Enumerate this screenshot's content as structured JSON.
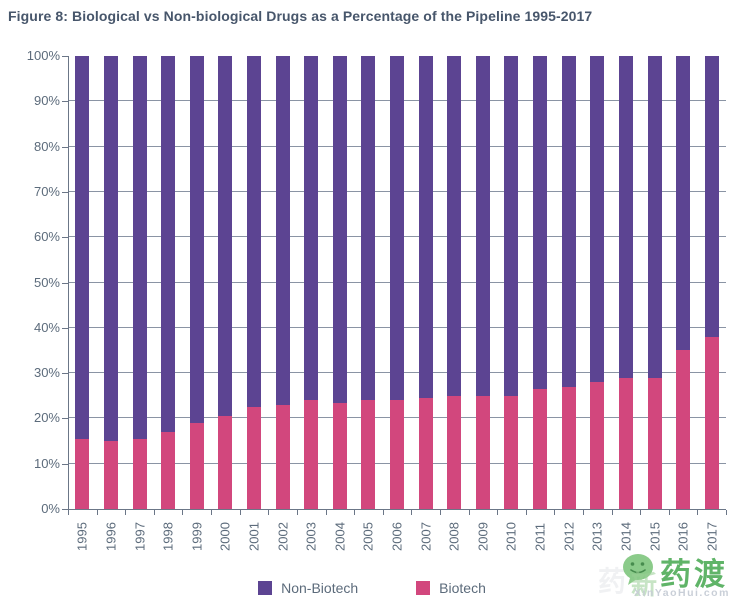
{
  "figure": {
    "title": "Figure 8: Biological vs Non-biological Drugs as a Percentage of the Pipeline 1995-2017"
  },
  "chart_data": {
    "type": "bar",
    "stacked": true,
    "percent_stacked": true,
    "title": "Figure 8: Biological vs Non-biological Drugs as a Percentage of the Pipeline 1995-2017",
    "categories": [
      "1995",
      "1996",
      "1997",
      "1998",
      "1999",
      "2000",
      "2001",
      "2002",
      "2003",
      "2004",
      "2005",
      "2006",
      "2007",
      "2008",
      "2009",
      "2010",
      "2011",
      "2012",
      "2013",
      "2014",
      "2015",
      "2016",
      "2017"
    ],
    "series": [
      {
        "name": "Non-Biotech",
        "color": "#5C4492",
        "values": [
          84.5,
          85,
          84.5,
          83,
          81,
          79.5,
          77.5,
          77,
          76,
          76.5,
          76,
          76,
          75.5,
          75,
          75,
          75,
          73.5,
          73,
          72,
          71,
          71,
          65,
          62
        ]
      },
      {
        "name": "Biotech",
        "color": "#D2477D",
        "values": [
          15.5,
          15,
          15.5,
          17,
          19,
          20.5,
          22.5,
          23,
          24,
          23.5,
          24,
          24,
          24.5,
          25,
          25,
          25,
          26.5,
          27,
          28,
          29,
          29,
          35,
          38
        ]
      }
    ],
    "xlabel": "",
    "ylabel": "",
    "ylim": [
      0,
      100
    ],
    "y_tick_labels": [
      "0%",
      "10%",
      "20%",
      "30%",
      "40%",
      "50%",
      "60%",
      "70%",
      "80%",
      "90%",
      "100%"
    ],
    "grid": true,
    "legend_position": "bottom"
  },
  "legend": {
    "items": [
      {
        "label": "Non-Biotech",
        "color": "#5C4492"
      },
      {
        "label": "Biotech",
        "color": "#D2477D"
      }
    ]
  },
  "watermark": {
    "brand": "药渡",
    "site": "XinYaoHui.com",
    "overlay_char": "新",
    "green": "#45A84E"
  },
  "colors": {
    "non_biotech": "#5C4492",
    "biotech": "#D2477D",
    "title_text": "#47566B",
    "axis_text": "#5C6B7B",
    "gridline": "#8A94A4",
    "axis_line": "#6B7687"
  }
}
